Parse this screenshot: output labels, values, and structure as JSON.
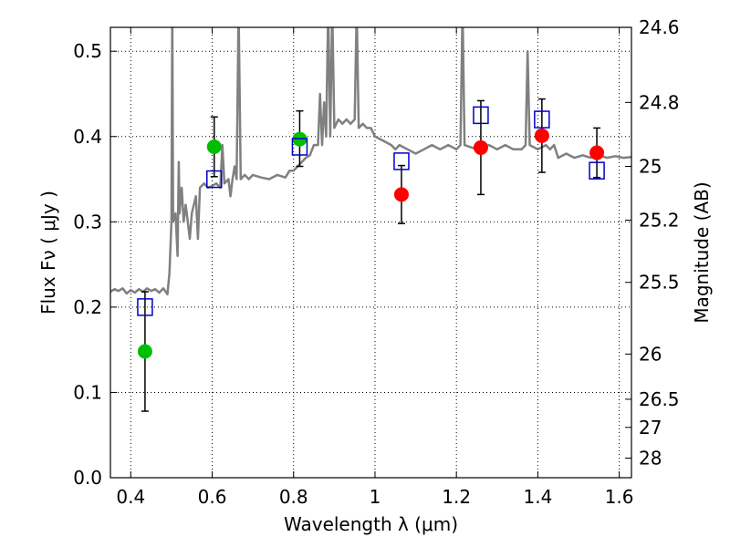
{
  "chart_data": {
    "type": "scatter",
    "xlabel": "Wavelength  λ (μm)",
    "ylabel": "Flux  Fν  ( μJy )",
    "y2label": "Magnitude (AB)",
    "xlim": [
      0.35,
      1.63
    ],
    "ylim": [
      0.0,
      0.528
    ],
    "grid": true,
    "x_ticks": [
      {
        "value": 0.4,
        "label": "0.4"
      },
      {
        "value": 0.6,
        "label": "0.6"
      },
      {
        "value": 0.8,
        "label": "0.8"
      },
      {
        "value": 1.0,
        "label": "1"
      },
      {
        "value": 1.2,
        "label": "1.2"
      },
      {
        "value": 1.4,
        "label": "1.4"
      },
      {
        "value": 1.6,
        "label": "1.6"
      }
    ],
    "y_ticks": [
      {
        "value": 0.0,
        "label": "0.0"
      },
      {
        "value": 0.1,
        "label": "0.1"
      },
      {
        "value": 0.2,
        "label": "0.2"
      },
      {
        "value": 0.3,
        "label": "0.3"
      },
      {
        "value": 0.4,
        "label": "0.4"
      },
      {
        "value": 0.5,
        "label": "0.5"
      }
    ],
    "y2_ticks": [
      {
        "flux": 0.528,
        "label": "24.6"
      },
      {
        "flux": 0.44,
        "label": "24.8"
      },
      {
        "flux": 0.365,
        "label": "25"
      },
      {
        "flux": 0.302,
        "label": "25.2"
      },
      {
        "flux": 0.229,
        "label": "25.5"
      },
      {
        "flux": 0.145,
        "label": "26"
      },
      {
        "flux": 0.092,
        "label": "26.5"
      },
      {
        "flux": 0.059,
        "label": "27"
      },
      {
        "flux": 0.023,
        "label": "28"
      }
    ],
    "series": [
      {
        "kind": "line",
        "color": "#808080",
        "points": [
          [
            0.35,
            0.218
          ],
          [
            0.36,
            0.221
          ],
          [
            0.37,
            0.219
          ],
          [
            0.38,
            0.222
          ],
          [
            0.39,
            0.216
          ],
          [
            0.4,
            0.22
          ],
          [
            0.41,
            0.217
          ],
          [
            0.42,
            0.221
          ],
          [
            0.43,
            0.218
          ],
          [
            0.44,
            0.222
          ],
          [
            0.45,
            0.219
          ],
          [
            0.46,
            0.221
          ],
          [
            0.47,
            0.217
          ],
          [
            0.48,
            0.222
          ],
          [
            0.49,
            0.215
          ],
          [
            0.495,
            0.24
          ],
          [
            0.5,
            0.3
          ],
          [
            0.502,
            0.55
          ],
          [
            0.504,
            0.3
          ],
          [
            0.51,
            0.31
          ],
          [
            0.515,
            0.26
          ],
          [
            0.518,
            0.37
          ],
          [
            0.52,
            0.31
          ],
          [
            0.525,
            0.34
          ],
          [
            0.53,
            0.3
          ],
          [
            0.535,
            0.32
          ],
          [
            0.54,
            0.3
          ],
          [
            0.545,
            0.28
          ],
          [
            0.55,
            0.31
          ],
          [
            0.56,
            0.33
          ],
          [
            0.565,
            0.28
          ],
          [
            0.57,
            0.34
          ],
          [
            0.58,
            0.345
          ],
          [
            0.59,
            0.34
          ],
          [
            0.6,
            0.342
          ],
          [
            0.61,
            0.345
          ],
          [
            0.62,
            0.34
          ],
          [
            0.625,
            0.39
          ],
          [
            0.63,
            0.345
          ],
          [
            0.64,
            0.35
          ],
          [
            0.645,
            0.33
          ],
          [
            0.65,
            0.35
          ],
          [
            0.655,
            0.365
          ],
          [
            0.66,
            0.35
          ],
          [
            0.665,
            0.55
          ],
          [
            0.67,
            0.35
          ],
          [
            0.68,
            0.355
          ],
          [
            0.69,
            0.35
          ],
          [
            0.7,
            0.355
          ],
          [
            0.72,
            0.352
          ],
          [
            0.74,
            0.35
          ],
          [
            0.76,
            0.355
          ],
          [
            0.78,
            0.352
          ],
          [
            0.79,
            0.36
          ],
          [
            0.8,
            0.36
          ],
          [
            0.81,
            0.365
          ],
          [
            0.82,
            0.37
          ],
          [
            0.83,
            0.375
          ],
          [
            0.84,
            0.378
          ],
          [
            0.85,
            0.39
          ],
          [
            0.86,
            0.39
          ],
          [
            0.865,
            0.45
          ],
          [
            0.87,
            0.39
          ],
          [
            0.875,
            0.44
          ],
          [
            0.88,
            0.4
          ],
          [
            0.885,
            0.55
          ],
          [
            0.89,
            0.4
          ],
          [
            0.895,
            0.55
          ],
          [
            0.9,
            0.41
          ],
          [
            0.91,
            0.42
          ],
          [
            0.92,
            0.415
          ],
          [
            0.93,
            0.42
          ],
          [
            0.94,
            0.415
          ],
          [
            0.95,
            0.42
          ],
          [
            0.955,
            0.55
          ],
          [
            0.96,
            0.41
          ],
          [
            0.97,
            0.415
          ],
          [
            0.98,
            0.41
          ],
          [
            0.99,
            0.41
          ],
          [
            1.0,
            0.4
          ],
          [
            1.02,
            0.395
          ],
          [
            1.04,
            0.39
          ],
          [
            1.05,
            0.385
          ],
          [
            1.06,
            0.39
          ],
          [
            1.08,
            0.385
          ],
          [
            1.1,
            0.38
          ],
          [
            1.12,
            0.385
          ],
          [
            1.14,
            0.39
          ],
          [
            1.16,
            0.385
          ],
          [
            1.18,
            0.39
          ],
          [
            1.2,
            0.385
          ],
          [
            1.21,
            0.39
          ],
          [
            1.215,
            0.55
          ],
          [
            1.22,
            0.39
          ],
          [
            1.25,
            0.385
          ],
          [
            1.28,
            0.39
          ],
          [
            1.3,
            0.385
          ],
          [
            1.32,
            0.39
          ],
          [
            1.34,
            0.385
          ],
          [
            1.36,
            0.385
          ],
          [
            1.37,
            0.39
          ],
          [
            1.375,
            0.5
          ],
          [
            1.38,
            0.39
          ],
          [
            1.4,
            0.385
          ],
          [
            1.42,
            0.39
          ],
          [
            1.43,
            0.385
          ],
          [
            1.44,
            0.39
          ],
          [
            1.45,
            0.375
          ],
          [
            1.47,
            0.38
          ],
          [
            1.49,
            0.375
          ],
          [
            1.51,
            0.378
          ],
          [
            1.53,
            0.375
          ],
          [
            1.55,
            0.378
          ],
          [
            1.57,
            0.375
          ],
          [
            1.59,
            0.377
          ],
          [
            1.61,
            0.375
          ],
          [
            1.63,
            0.376
          ]
        ]
      },
      {
        "kind": "points",
        "marker": "circle",
        "color": "#00bf00",
        "points": [
          {
            "x": 0.435,
            "y": 0.148,
            "yerr_low": 0.078,
            "yerr_high": 0.218
          },
          {
            "x": 0.605,
            "y": 0.388,
            "yerr_low": 0.353,
            "yerr_high": 0.423
          },
          {
            "x": 0.815,
            "y": 0.397,
            "yerr_low": 0.365,
            "yerr_high": 0.43
          }
        ]
      },
      {
        "kind": "points",
        "marker": "circle",
        "color": "#ff0000",
        "points": [
          {
            "x": 1.065,
            "y": 0.332,
            "yerr_low": 0.298,
            "yerr_high": 0.366
          },
          {
            "x": 1.26,
            "y": 0.387,
            "yerr_low": 0.332,
            "yerr_high": 0.442
          },
          {
            "x": 1.41,
            "y": 0.401,
            "yerr_low": 0.358,
            "yerr_high": 0.444
          },
          {
            "x": 1.545,
            "y": 0.381,
            "yerr_low": 0.352,
            "yerr_high": 0.41
          }
        ]
      },
      {
        "kind": "points",
        "marker": "open-square",
        "color": "#0000cc",
        "points": [
          {
            "x": 0.435,
            "y": 0.2
          },
          {
            "x": 0.605,
            "y": 0.35
          },
          {
            "x": 0.815,
            "y": 0.388
          },
          {
            "x": 1.065,
            "y": 0.371
          },
          {
            "x": 1.26,
            "y": 0.425
          },
          {
            "x": 1.41,
            "y": 0.42
          },
          {
            "x": 1.545,
            "y": 0.36
          }
        ]
      }
    ]
  }
}
